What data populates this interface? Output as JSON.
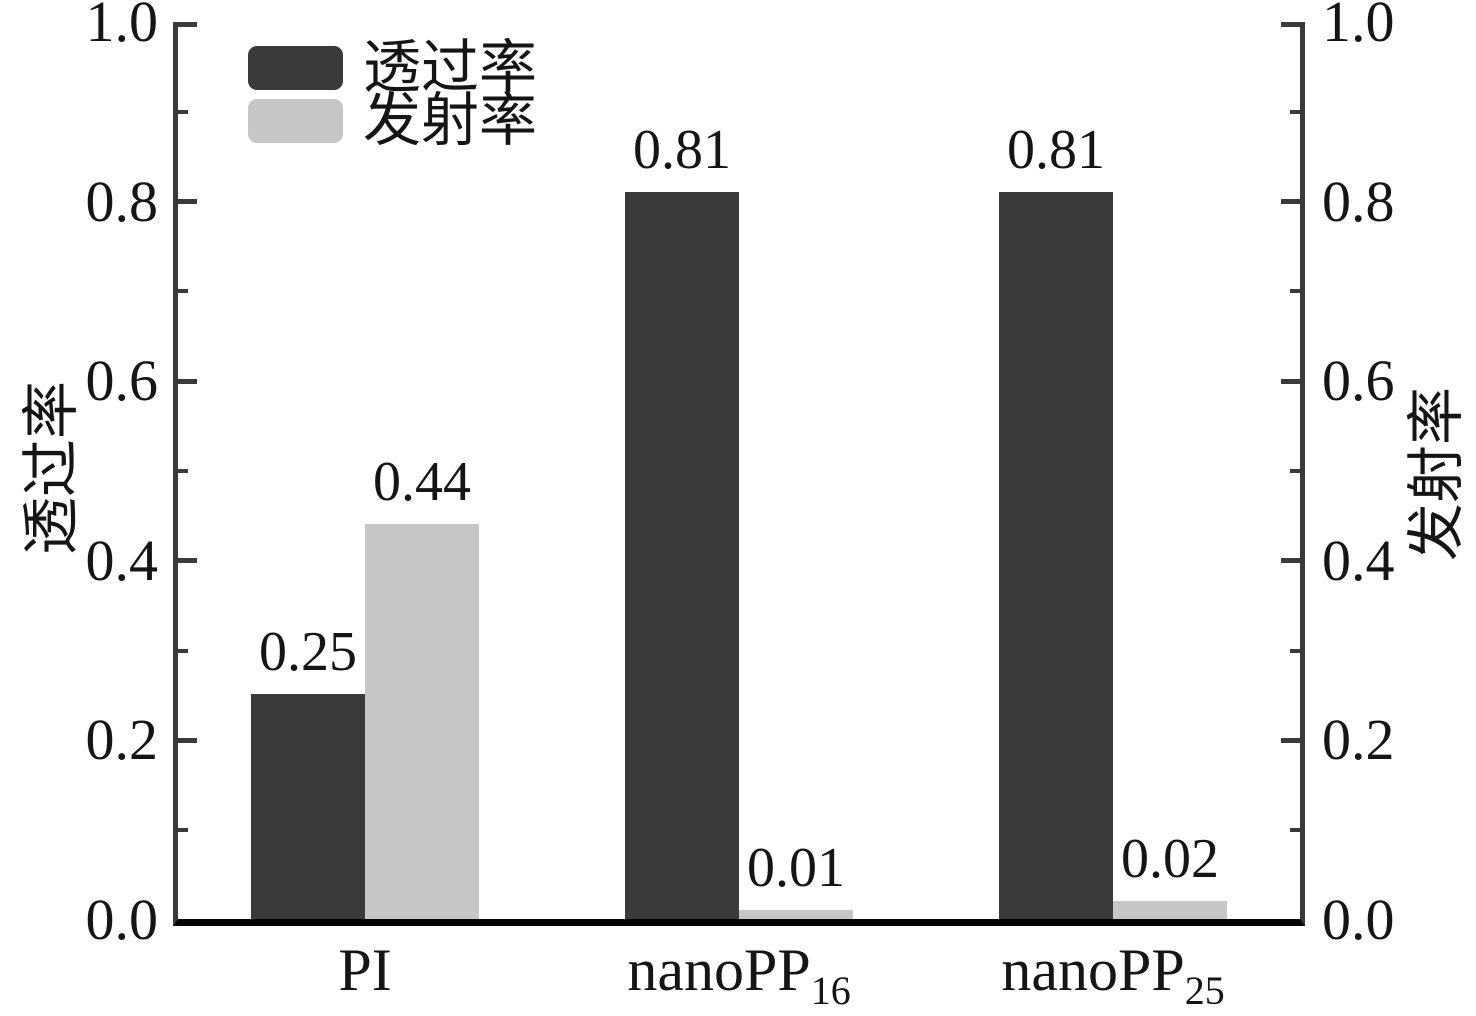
{
  "chart_data": {
    "type": "bar",
    "title": "",
    "categories": [
      {
        "text": "PI",
        "sub": ""
      },
      {
        "text": "nanoPP",
        "sub": "16"
      },
      {
        "text": "nanoPP",
        "sub": "25"
      }
    ],
    "series": [
      {
        "name": "透过率",
        "axis": "left",
        "color": "#3a3a3a",
        "values": [
          0.25,
          0.81,
          0.81
        ],
        "labels": [
          "0.25",
          "0.81",
          "0.81"
        ]
      },
      {
        "name": "发射率",
        "axis": "right",
        "color": "#c6c6c6",
        "values": [
          0.44,
          0.01,
          0.02
        ],
        "labels": [
          "0.44",
          "0.01",
          "0.02"
        ]
      }
    ],
    "left_axis": {
      "label": "透过率",
      "range": [
        0.0,
        1.0
      ],
      "major_ticks": [
        {
          "v": 1.0,
          "t": "1.0"
        },
        {
          "v": 0.8,
          "t": "0.8"
        },
        {
          "v": 0.6,
          "t": "0.6"
        },
        {
          "v": 0.4,
          "t": "0.4"
        },
        {
          "v": 0.2,
          "t": "0.2"
        },
        {
          "v": 0.0,
          "t": "0.0"
        }
      ],
      "minor_ticks": [
        0.9,
        0.7,
        0.5,
        0.3,
        0.1
      ]
    },
    "right_axis": {
      "label": "发射率",
      "range": [
        0.0,
        1.0
      ],
      "major_ticks": [
        {
          "v": 1.0,
          "t": "1.0"
        },
        {
          "v": 0.8,
          "t": "0.8"
        },
        {
          "v": 0.6,
          "t": "0.6"
        },
        {
          "v": 0.4,
          "t": "0.4"
        },
        {
          "v": 0.2,
          "t": "0.2"
        },
        {
          "v": 0.0,
          "t": "0.0"
        }
      ],
      "minor_ticks": [
        0.9,
        0.7,
        0.5,
        0.3,
        0.1
      ]
    },
    "legend": {
      "position": "top-left",
      "entries": [
        {
          "label": "透过率",
          "color": "#3a3a3a"
        },
        {
          "label": "发射率",
          "color": "#c6c6c6"
        }
      ]
    },
    "grid": false,
    "colors": {
      "spine": "#3a3a3a",
      "baseline": "#050505",
      "text": "#151515",
      "background": "#ffffff"
    }
  }
}
